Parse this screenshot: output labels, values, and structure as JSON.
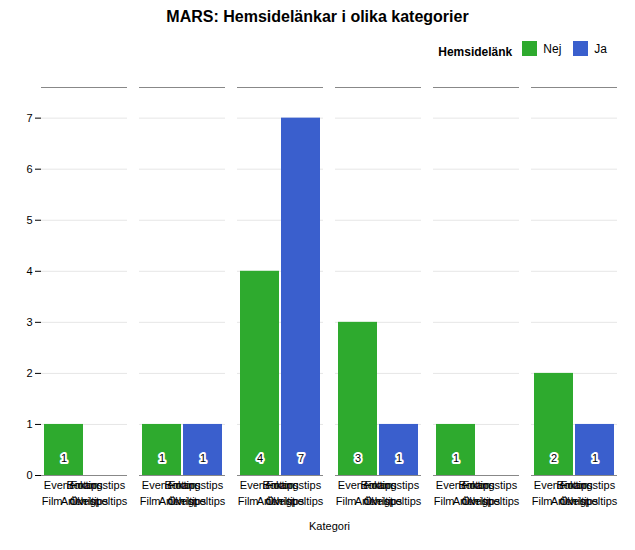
{
  "chart_data": {
    "type": "bar",
    "title": "MARS: Hemsidelänkar i olika kategorier",
    "xlabel": "Kategori",
    "legend_title": "Hemsidelänk",
    "categories": [
      "Boktips",
      "Film- och speltips",
      "Evenemangstips",
      "Artikeltips",
      "Foton",
      "Övrigt"
    ],
    "series": [
      {
        "name": "Nej",
        "color": "#2EAA2E",
        "values": [
          1,
          1,
          4,
          3,
          1,
          2
        ]
      },
      {
        "name": "Ja",
        "color": "#3A5FCD",
        "values": [
          0,
          1,
          7,
          1,
          0,
          1
        ]
      }
    ],
    "ylim": [
      0,
      7.6
    ],
    "yticks": [
      0,
      1,
      2,
      3,
      4,
      5,
      6,
      7
    ],
    "grid": true,
    "legend": "upper right",
    "data_labels": true
  }
}
